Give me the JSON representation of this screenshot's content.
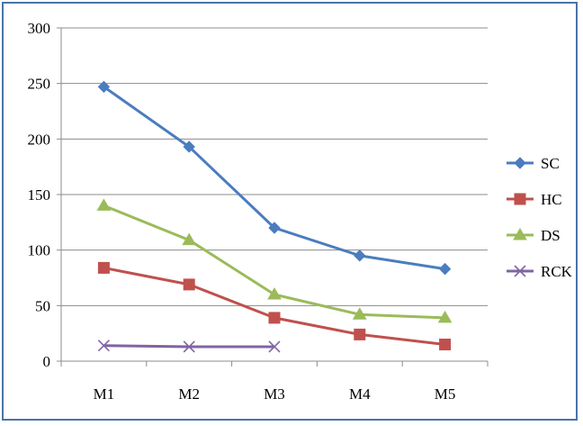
{
  "chart_data": {
    "type": "line",
    "title": "",
    "xlabel": "",
    "ylabel": "",
    "categories": [
      "M1",
      "M2",
      "M3",
      "M4",
      "M5"
    ],
    "ylim": [
      0,
      300
    ],
    "yticks": [
      "0",
      "50",
      "100",
      "150",
      "200",
      "250",
      "300"
    ],
    "grid": true,
    "legend_position": "right",
    "series": [
      {
        "name": "SC",
        "color": "#4a7dbf",
        "marker": "diamond",
        "values": [
          247,
          193,
          120,
          95,
          83
        ]
      },
      {
        "name": "HC",
        "color": "#c0504d",
        "marker": "square",
        "values": [
          84,
          69,
          39,
          24,
          15
        ]
      },
      {
        "name": "DS",
        "color": "#9bbb59",
        "marker": "triangle",
        "values": [
          140,
          109,
          60,
          42,
          39
        ]
      },
      {
        "name": "RCK",
        "color": "#8064a2",
        "marker": "x",
        "values": [
          14,
          13,
          13,
          null,
          null
        ]
      }
    ]
  }
}
